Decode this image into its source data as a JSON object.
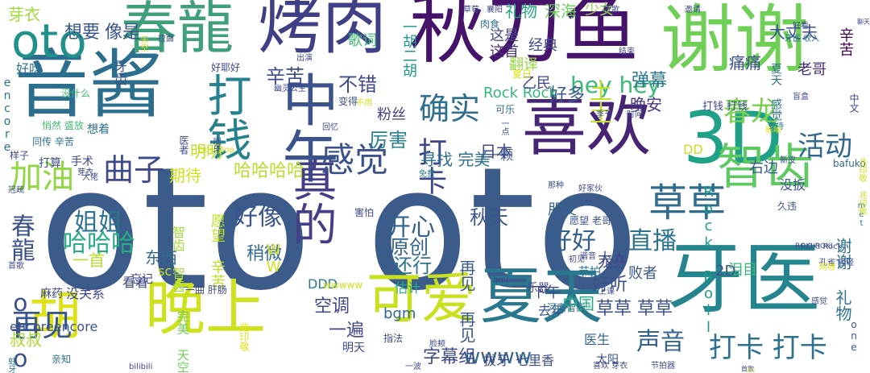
{
  "title": "",
  "words": [
    {
      "text": "oto oto",
      "color": "#3b5b8a"
    },
    {
      "text": "秋刀鱼",
      "color": "#45136a"
    },
    {
      "text": "谢谢",
      "color": "#6fcf57"
    },
    {
      "text": "音酱",
      "color": "#2c6e8e"
    },
    {
      "text": "烤肉",
      "color": "#3e3f85"
    },
    {
      "text": "春龍",
      "color": "#3f9f79"
    },
    {
      "text": "oto",
      "color": "#21918c"
    },
    {
      "text": "喜欢",
      "color": "#482475"
    },
    {
      "text": "3D",
      "color": "#1fa187"
    },
    {
      "text": "中午",
      "color": "#3b528b"
    },
    {
      "text": "牙医",
      "color": "#25858e"
    },
    {
      "text": "晚上",
      "color": "#cde11d"
    },
    {
      "text": "胡",
      "color": "#dde318"
    },
    {
      "text": "可爱",
      "color": "#c8e020"
    },
    {
      "text": "夏天",
      "color": "#2a788e"
    },
    {
      "text": "智齿",
      "color": "#5ec962"
    },
    {
      "text": "草草",
      "color": "#2f6c8e"
    },
    {
      "text": "真的",
      "color": "#433e85"
    },
    {
      "text": "打钱",
      "color": "#26828e"
    },
    {
      "text": "感觉",
      "color": "#3b528b"
    },
    {
      "text": "确实",
      "color": "#2e6e8e"
    },
    {
      "text": "打卡 打卡",
      "color": "#2c728e"
    },
    {
      "text": "打卡",
      "color": "#3f4788"
    },
    {
      "text": "春龙",
      "color": "#7ad151"
    },
    {
      "text": "活动",
      "color": "#31688e"
    },
    {
      "text": "曲子",
      "color": "#3e4a89"
    },
    {
      "text": "加油",
      "color": "#90d743"
    },
    {
      "text": "hey hey",
      "color": "#3aba76"
    },
    {
      "text": "土土",
      "color": "#c2df23"
    },
    {
      "text": "再见",
      "color": "#39568c"
    },
    {
      "text": "春龍 oto",
      "color": "#3b518b"
    },
    {
      "text": "姐姐",
      "color": "#2c738e"
    },
    {
      "text": "哈哈哈",
      "color": "#27ad81"
    },
    {
      "text": "好像",
      "color": "#3a548c"
    },
    {
      "text": "开心",
      "color": "#33628d"
    },
    {
      "text": "好好",
      "color": "#355f8d"
    },
    {
      "text": "直播",
      "color": "#2c738e"
    },
    {
      "text": "声音",
      "color": "#33638d"
    },
    {
      "text": "wwww",
      "color": "#31678e"
    },
    {
      "text": "字幕组",
      "color": "#3e4c8a"
    },
    {
      "text": "草草 草草",
      "color": "#3b528b"
    },
    {
      "text": "一遍",
      "color": "#414487"
    },
    {
      "text": "好听",
      "color": "#3b528b"
    },
    {
      "text": "不错",
      "color": "#3e4989"
    },
    {
      "text": "辛苦",
      "color": "#3e4c8a"
    },
    {
      "text": "日本",
      "color": "#3f4788"
    },
    {
      "text": "秋天",
      "color": "#3a548c"
    },
    {
      "text": "原创",
      "color": "#33638d"
    },
    {
      "text": "还行",
      "color": "#2c728e"
    },
    {
      "text": "稍微",
      "color": "#306a8e"
    },
    {
      "text": "哈哈哈哈",
      "color": "#b5de2b"
    },
    {
      "text": "期待",
      "color": "#d2e21b"
    },
    {
      "text": "明明",
      "color": "#c0df25"
    },
    {
      "text": "厉害",
      "color": "#26828e"
    },
    {
      "text": "寻找 完美",
      "color": "#2e6f8e"
    },
    {
      "text": "好多",
      "color": "#38598c"
    },
    {
      "text": "Rock Rock",
      "color": "#35b779"
    },
    {
      "text": "这是",
      "color": "#3f4788"
    },
    {
      "text": "这首",
      "color": "#472d7b"
    },
    {
      "text": "经典",
      "color": "#3f4788"
    },
    {
      "text": "礼物",
      "color": "#22a785"
    },
    {
      "text": "深海",
      "color": "#6ccd5a"
    },
    {
      "text": "少女",
      "color": "#8bd646"
    },
    {
      "text": "想要",
      "color": "#38598c"
    },
    {
      "text": "像是",
      "color": "#3a548c"
    },
    {
      "text": "芽衣",
      "color": "#a2da37"
    },
    {
      "text": "好吃",
      "color": "#2d718e"
    },
    {
      "text": "一胡二胡",
      "color": "#1f9a8a"
    },
    {
      "text": "歌词",
      "color": "#40bd72"
    },
    {
      "text": "乙民",
      "color": "#3f4889"
    },
    {
      "text": "翻译",
      "color": "#95d840"
    },
    {
      "text": "粉丝",
      "color": "#424186"
    },
    {
      "text": "晚安",
      "color": "#453882"
    },
    {
      "text": "弹幕",
      "color": "#2a788e"
    },
    {
      "text": "痛痛",
      "color": "#3b528b"
    },
    {
      "text": "大丈夫",
      "color": "#3b518b"
    },
    {
      "text": "老哥",
      "color": "#482878"
    },
    {
      "text": "辛苦",
      "color": "#440154"
    },
    {
      "text": "打钱 打钱",
      "color": "#3e4a89"
    },
    {
      "text": "夏天 感觉",
      "color": "#2d718e"
    },
    {
      "text": "右边",
      "color": "#38598c"
    },
    {
      "text": "没扳",
      "color": "#3b528b"
    },
    {
      "text": "Rock Roll",
      "color": "#1f988b"
    },
    {
      "text": "DD",
      "color": "#c8e020"
    },
    {
      "text": "朋友",
      "color": "#33638d"
    },
    {
      "text": "败者",
      "color": "#39568c"
    },
    {
      "text": "泪目",
      "color": "#37b878"
    },
    {
      "text": "2D",
      "color": "#3b528b"
    },
    {
      "text": "谢谢 礼物",
      "color": "#2c728e"
    },
    {
      "text": "龙牙",
      "color": "#3e4989"
    },
    {
      "text": "大人",
      "color": "#3e4989"
    },
    {
      "text": "再见 再见",
      "color": "#38598c"
    },
    {
      "text": "下午",
      "color": "#3f4788"
    },
    {
      "text": "中国",
      "color": "#25ac82"
    },
    {
      "text": "bgm",
      "color": "#31678e"
    },
    {
      "text": "去年",
      "color": "#3a548c"
    },
    {
      "text": "医生",
      "color": "#33638d"
    },
    {
      "text": "七里香",
      "color": "#3e4c8a"
    },
    {
      "text": "太阳",
      "color": "#3a548c"
    },
    {
      "text": "拔牙",
      "color": "#3f4788"
    },
    {
      "text": "乐器",
      "color": "#414487"
    },
    {
      "text": "节拍",
      "color": "#2a788e"
    },
    {
      "text": "空调",
      "color": "#3f4788"
    },
    {
      "text": "没关系",
      "color": "#3f4788"
    },
    {
      "text": "看着",
      "color": "#3e4a89"
    },
    {
      "text": "一首",
      "color": "#b5de2b"
    },
    {
      "text": "东西",
      "color": "#31688e"
    },
    {
      "text": "估计",
      "color": "#27ad81"
    },
    {
      "text": "忘记",
      "color": "#3f4788"
    },
    {
      "text": "智齿 智齿",
      "color": "#a5db36"
    },
    {
      "text": "愿望 辛苦",
      "color": "#bddf26"
    },
    {
      "text": "叔叔",
      "color": "#aadc32"
    },
    {
      "text": "encoreencore",
      "color": "#3b528b"
    },
    {
      "text": "麻药",
      "color": "#3e4a89"
    },
    {
      "text": "手术",
      "color": "#3f4788"
    },
    {
      "text": "想着",
      "color": "#2d708e"
    },
    {
      "text": "打算",
      "color": "#3b528b"
    },
    {
      "text": "WW",
      "color": "#cde11d"
    },
    {
      "text": "完美 天空",
      "color": "#6ece58"
    },
    {
      "text": "DDD",
      "color": "#2a788e"
    },
    {
      "text": "sc",
      "color": "#c8e020"
    },
    {
      "text": "一曲 肝肠",
      "color": "#3e4a89"
    },
    {
      "text": "牙齿",
      "color": "#3b528b"
    },
    {
      "text": "没什么",
      "color": "#44bf70"
    },
    {
      "text": "encore",
      "color": "#2c728e"
    },
    {
      "text": "样子",
      "color": "#3e4a89"
    },
    {
      "text": "同传 辛苦",
      "color": "#2d718e"
    },
    {
      "text": "悄然 盛放",
      "color": "#42be71"
    },
    {
      "text": "好耶好",
      "color": "#3f4788"
    },
    {
      "text": "幽灵公主",
      "color": "#3e4a89"
    },
    {
      "text": "出演",
      "color": "#3e4a89"
    },
    {
      "text": "变得",
      "color": "#3b528b"
    },
    {
      "text": "回忆",
      "color": "#3e4989"
    },
    {
      "text": "不用",
      "color": "#dde318"
    },
    {
      "text": "Don stop",
      "color": "#cde11d"
    },
    {
      "text": "可乐",
      "color": "#2e6f8e"
    },
    {
      "text": "免费",
      "color": "#2a788e"
    },
    {
      "text": "时间",
      "color": "#3f4788"
    },
    {
      "text": "季节",
      "color": "#3e4a89"
    },
    {
      "text": "刷牙",
      "color": "#3e4c8a"
    },
    {
      "text": "医者",
      "color": "#3e4989"
    },
    {
      "text": "一颗",
      "color": "#3b528b"
    },
    {
      "text": "害怕",
      "color": "#3e4989"
    },
    {
      "text": "那种",
      "color": "#3b528b"
    },
    {
      "text": "久违",
      "color": "#3b528b"
    },
    {
      "text": "好家伙",
      "color": "#3e4a89"
    },
    {
      "text": "愿望 老哥",
      "color": "#3b528b"
    },
    {
      "text": "ROKI Rock",
      "color": "#3b528b"
    },
    {
      "text": "孔雀 轻轻",
      "color": "#3e4a89"
    },
    {
      "text": "ROKI ROKI",
      "color": "#3e4c8a"
    },
    {
      "text": "bafuko",
      "color": "#31688e"
    },
    {
      "text": "新皮",
      "color": "#3e4a89"
    },
    {
      "text": "bml",
      "color": "#3e4a89"
    },
    {
      "text": "上课",
      "color": "#3e4a89"
    },
    {
      "text": "谐音",
      "color": "#3e4a89"
    },
    {
      "text": "初见",
      "color": "#3e4a89"
    },
    {
      "text": "wwwww",
      "color": "#cde11d"
    },
    {
      "text": "河南智齿",
      "color": "#2d708e"
    },
    {
      "text": "指法",
      "color": "#3e4a89"
    },
    {
      "text": "喜欢 芽衣",
      "color": "#3e4a89"
    },
    {
      "text": "节拍器",
      "color": "#3e4a89"
    },
    {
      "text": "一波",
      "color": "#3e4a89"
    },
    {
      "text": "脸颊",
      "color": "#3e4a89"
    },
    {
      "text": "明天",
      "color": "#3e4a89"
    },
    {
      "text": "bilibili",
      "color": "#3e4a89"
    },
    {
      "text": "亲知",
      "color": "#2d718e"
    },
    {
      "text": "蛀牙",
      "color": "#2c728e"
    },
    {
      "text": "one",
      "color": "#3b528b"
    },
    {
      "text": "感觉",
      "color": "#3e4a89"
    },
    {
      "text": "首歌",
      "color": "#3e4a89"
    },
    {
      "text": "兆印敬",
      "color": "#dde318"
    },
    {
      "text": "草莓",
      "color": "#3e4a89"
    },
    {
      "text": "襄阳",
      "color": "#3e4a89"
    },
    {
      "text": "听歌",
      "color": "#3e4a89"
    },
    {
      "text": "肉食",
      "color": "#2d718e"
    },
    {
      "text": "夏日",
      "color": "#dde318"
    },
    {
      "text": "拉面",
      "color": "#3e4a89"
    },
    {
      "text": "天空",
      "color": "#cde11d"
    },
    {
      "text": "邀请",
      "color": "#3e4a89"
    },
    {
      "text": "好看",
      "color": "#3e4a89"
    },
    {
      "text": "牙医 收入",
      "color": "#2d718e"
    },
    {
      "text": "结束",
      "color": "#3e4a89"
    },
    {
      "text": "中文",
      "color": "#3e4a89"
    },
    {
      "text": "盲盒",
      "color": "#3e4a89"
    },
    {
      "text": "支持",
      "color": "#2a788e"
    },
    {
      "text": "影响",
      "color": "#dde318"
    },
    {
      "text": "met",
      "color": "#2d718e"
    },
    {
      "text": "一点",
      "color": "#3b528b"
    },
    {
      "text": "阿喂",
      "color": "#dde318"
    },
    {
      "text": "恋口",
      "color": "#dde318"
    },
    {
      "text": "聊天",
      "color": "#3e4a89"
    },
    {
      "text": "芽衣",
      "color": "#3e4a89"
    },
    {
      "text": "大佬",
      "color": "#3e4a89"
    },
    {
      "text": "冠疏",
      "color": "#3e4a89"
    },
    {
      "text": "首歌",
      "color": "#3e4a89"
    },
    {
      "text": "兆印敬 兆印敬",
      "color": "#cde11d"
    }
  ]
}
